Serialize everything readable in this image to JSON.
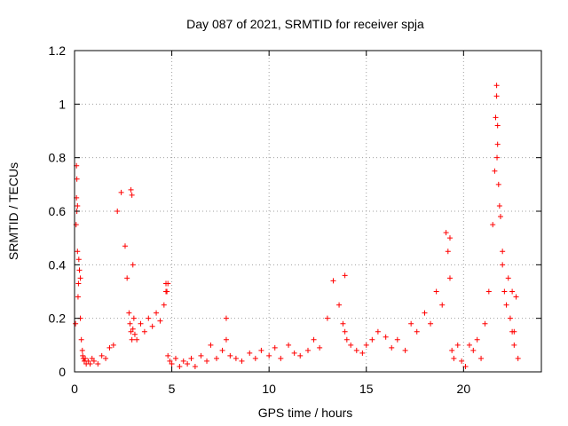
{
  "chart_data": {
    "type": "scatter",
    "title": "Day 087 of 2021, SRMTID for receiver spja",
    "xlabel": "GPS time / hours",
    "ylabel": "SRMTID / TECUs",
    "xlim": [
      0,
      24
    ],
    "ylim": [
      0,
      1.2
    ],
    "xticks": [
      0,
      5,
      10,
      15,
      20
    ],
    "xtick_labels": [
      "0",
      "5",
      "10",
      "15",
      "20"
    ],
    "yticks": [
      0,
      0.2,
      0.4,
      0.6,
      0.8,
      1,
      1.2
    ],
    "ytick_labels": [
      "0",
      "0.2",
      "0.4",
      "0.6",
      "0.8",
      "1",
      "1.2"
    ],
    "grid": true,
    "marker": "+",
    "series": [
      {
        "name": "SRMTID",
        "color": "#ff0000",
        "x": [
          0.05,
          0.08,
          0.1,
          0.12,
          0.15,
          0.18,
          0.2,
          0.22,
          0.25,
          0.3,
          0.35,
          0.4,
          0.42,
          0.45,
          0.5,
          0.55,
          0.6,
          0.7,
          0.8,
          0.9,
          1.0,
          1.2,
          1.4,
          1.6,
          1.8,
          2.0,
          2.2,
          2.4,
          2.6,
          2.7,
          2.8,
          2.85,
          2.9,
          2.95,
          3.0,
          3.05,
          3.1,
          3.2,
          3.4,
          3.6,
          3.8,
          4.0,
          4.2,
          4.4,
          4.6,
          4.7,
          4.75,
          4.8,
          4.9,
          5.0,
          5.2,
          5.4,
          5.6,
          5.8,
          6.0,
          6.2,
          6.5,
          6.8,
          7.0,
          7.3,
          7.6,
          7.8,
          8.0,
          8.3,
          8.6,
          9.0,
          9.3,
          9.6,
          10.0,
          10.3,
          10.6,
          11.0,
          11.3,
          11.6,
          12.0,
          12.3,
          12.6,
          13.0,
          13.3,
          13.6,
          13.8,
          13.9,
          14.0,
          14.2,
          14.5,
          14.8,
          15.0,
          15.3,
          15.6,
          16.0,
          16.3,
          16.6,
          17.0,
          17.3,
          17.6,
          18.0,
          18.3,
          18.6,
          18.9,
          19.1,
          19.2,
          19.3,
          19.4,
          19.5,
          19.7,
          19.9,
          20.1,
          20.3,
          20.5,
          20.7,
          20.9,
          21.1,
          21.3,
          21.5,
          21.6,
          21.65,
          21.7,
          21.75,
          21.8,
          21.85,
          21.9,
          22.0,
          22.1,
          22.2,
          22.3,
          22.4,
          22.5,
          22.6,
          22.7,
          22.8,
          0.1,
          0.15,
          0.3,
          2.9,
          3.0,
          4.8,
          13.9,
          19.3,
          21.7,
          21.72,
          22.5,
          7.8,
          0.12,
          2.95,
          4.7,
          21.75,
          22.0,
          22.6
        ],
        "y": [
          0.18,
          0.55,
          0.77,
          0.72,
          0.45,
          0.28,
          0.33,
          0.42,
          0.38,
          0.2,
          0.12,
          0.08,
          0.06,
          0.05,
          0.04,
          0.05,
          0.03,
          0.04,
          0.03,
          0.05,
          0.04,
          0.03,
          0.06,
          0.05,
          0.09,
          0.1,
          0.6,
          0.67,
          0.47,
          0.35,
          0.22,
          0.18,
          0.15,
          0.12,
          0.16,
          0.2,
          0.14,
          0.12,
          0.18,
          0.15,
          0.2,
          0.17,
          0.22,
          0.19,
          0.25,
          0.33,
          0.3,
          0.06,
          0.04,
          0.03,
          0.05,
          0.02,
          0.04,
          0.03,
          0.05,
          0.02,
          0.06,
          0.04,
          0.1,
          0.05,
          0.08,
          0.12,
          0.06,
          0.05,
          0.04,
          0.07,
          0.05,
          0.08,
          0.06,
          0.09,
          0.05,
          0.1,
          0.07,
          0.06,
          0.08,
          0.12,
          0.09,
          0.2,
          0.34,
          0.25,
          0.18,
          0.15,
          0.12,
          0.1,
          0.08,
          0.07,
          0.1,
          0.12,
          0.15,
          0.13,
          0.09,
          0.12,
          0.08,
          0.18,
          0.15,
          0.22,
          0.18,
          0.3,
          0.25,
          0.52,
          0.45,
          0.35,
          0.08,
          0.05,
          0.1,
          0.04,
          0.02,
          0.1,
          0.08,
          0.12,
          0.05,
          0.18,
          0.3,
          0.55,
          0.75,
          0.95,
          1.07,
          0.85,
          0.7,
          0.62,
          0.58,
          0.45,
          0.3,
          0.25,
          0.35,
          0.2,
          0.15,
          0.1,
          0.28,
          0.05,
          0.65,
          0.62,
          0.35,
          0.68,
          0.4,
          0.33,
          0.36,
          0.5,
          1.03,
          0.8,
          0.3,
          0.2,
          0.6,
          0.66,
          0.3,
          0.92,
          0.4,
          0.15
        ]
      }
    ]
  }
}
